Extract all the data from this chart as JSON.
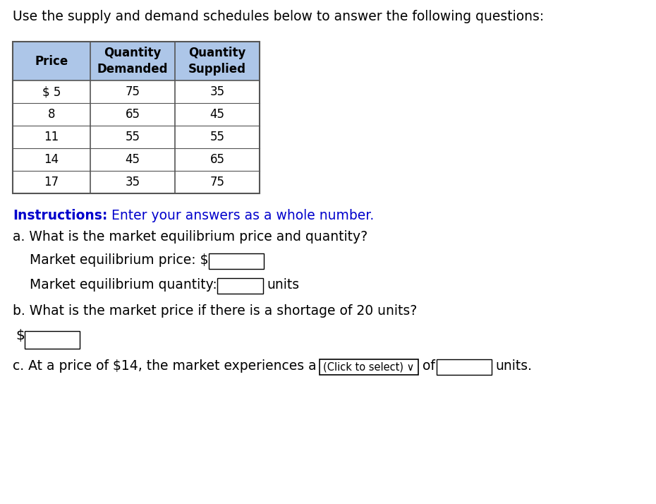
{
  "title": "Use the supply and demand schedules below to answer the following questions:",
  "table_headers": [
    "Price",
    "Quantity\nDemanded",
    "Quantity\nSupplied"
  ],
  "table_data": [
    [
      "$ 5",
      "75",
      "35"
    ],
    [
      "8",
      "65",
      "45"
    ],
    [
      "11",
      "55",
      "55"
    ],
    [
      "14",
      "45",
      "65"
    ],
    [
      "17",
      "35",
      "75"
    ]
  ],
  "header_bg_color": "#adc6e8",
  "table_border_color": "#555555",
  "instructions_bold": "Instructions:",
  "instructions_rest": " Enter your answers as a whole number.",
  "instructions_color": "#0000cc",
  "question_a": "a. What is the market equilibrium price and quantity?",
  "label_price": "Market equilibrium price: $",
  "label_quantity": "Market equilibrium quantity:",
  "label_quantity_units": "units",
  "question_b": "b. What is the market price if there is a shortage of 20 units?",
  "dollar_sign": "$",
  "question_c": "c. At a price of $14, the market experiences a",
  "click_to_select": "(Click to select) ∨",
  "of_text": "of",
  "units_text": "units.",
  "background_color": "#ffffff",
  "text_color": "#000000",
  "font_size_title": 13.5,
  "font_size_table": 12,
  "font_size_body": 13.5
}
